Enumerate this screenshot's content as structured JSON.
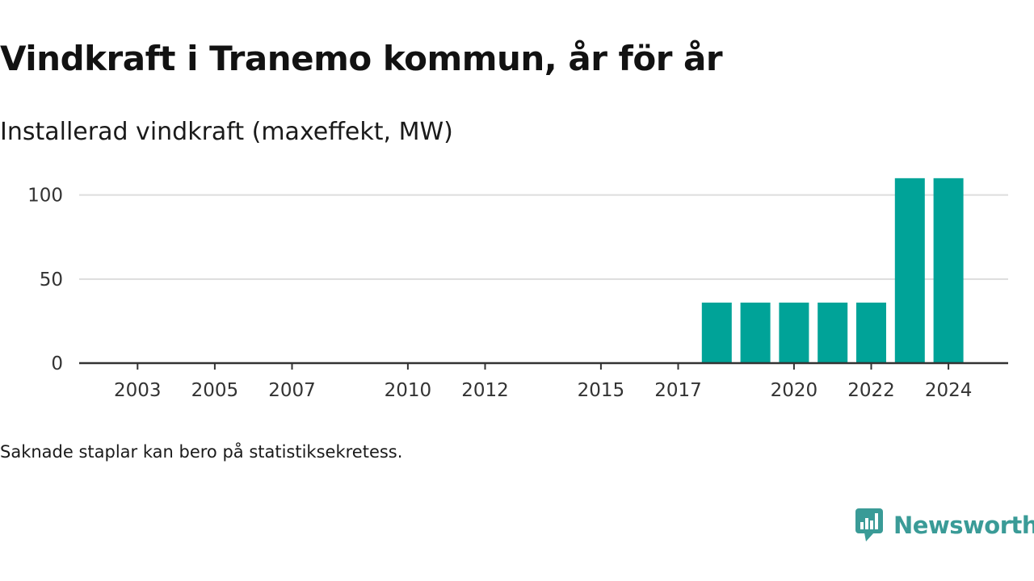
{
  "title": "Vindkraft i Tranemo kommun, år för år",
  "subtitle": "Installerad vindkraft (maxeffekt, MW)",
  "footnote": "Saknade staplar kan bero på statistiksekretess.",
  "brand": {
    "name": "Newsworthy",
    "icon": "newsworthy-logo-icon",
    "color": "#3a9b97"
  },
  "chart_data": {
    "type": "bar",
    "title": "Vindkraft i Tranemo kommun, år för år",
    "subtitle": "Installerad vindkraft (maxeffekt, MW)",
    "xlabel": "",
    "ylabel": "",
    "categories": [
      2002,
      2003,
      2004,
      2005,
      2006,
      2007,
      2008,
      2009,
      2010,
      2011,
      2012,
      2013,
      2014,
      2015,
      2016,
      2017,
      2018,
      2019,
      2020,
      2021,
      2022,
      2023,
      2024
    ],
    "values": [
      null,
      null,
      null,
      null,
      null,
      null,
      null,
      null,
      null,
      null,
      null,
      null,
      null,
      null,
      null,
      null,
      36,
      36,
      36,
      36,
      36,
      110,
      110
    ],
    "x_tick_labels": [
      "2003",
      "2005",
      "2007",
      "2010",
      "2012",
      "2015",
      "2017",
      "2020",
      "2022",
      "2024"
    ],
    "y_ticks": [
      0,
      50,
      100
    ],
    "ylim": [
      0,
      120
    ],
    "bar_color": "#00a398",
    "grid": true,
    "legend": "none"
  }
}
